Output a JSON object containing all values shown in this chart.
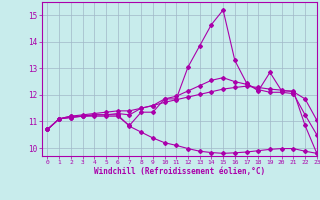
{
  "xlabel": "Windchill (Refroidissement éolien,°C)",
  "xlim": [
    -0.5,
    23
  ],
  "ylim": [
    9.7,
    15.5
  ],
  "yticks": [
    10,
    11,
    12,
    13,
    14,
    15
  ],
  "xticks": [
    0,
    1,
    2,
    3,
    4,
    5,
    6,
    7,
    8,
    9,
    10,
    11,
    12,
    13,
    14,
    15,
    16,
    17,
    18,
    19,
    20,
    21,
    22,
    23
  ],
  "background_color": "#c8ecec",
  "grid_color": "#a0b8c8",
  "line_color": "#aa00aa",
  "line1_x": [
    0,
    1,
    2,
    3,
    4,
    5,
    6,
    7,
    8,
    9,
    10,
    11,
    12,
    13,
    14,
    15,
    16,
    17,
    18,
    19,
    20,
    21,
    22,
    23
  ],
  "line1_y": [
    10.7,
    11.1,
    11.15,
    11.2,
    11.2,
    11.2,
    11.2,
    10.85,
    11.35,
    11.35,
    11.85,
    11.85,
    13.05,
    13.85,
    14.65,
    15.2,
    13.3,
    12.45,
    12.15,
    12.85,
    12.15,
    12.15,
    10.85,
    9.8
  ],
  "line2_x": [
    0,
    1,
    2,
    3,
    4,
    5,
    6,
    7,
    8,
    9,
    10,
    11,
    12,
    13,
    14,
    15,
    16,
    17,
    18,
    19,
    20,
    21,
    22,
    23
  ],
  "line2_y": [
    10.7,
    11.1,
    11.2,
    11.2,
    11.25,
    11.25,
    11.3,
    11.25,
    11.5,
    11.6,
    11.85,
    11.95,
    12.15,
    12.35,
    12.55,
    12.65,
    12.5,
    12.4,
    12.2,
    12.1,
    12.1,
    12.05,
    11.25,
    10.5
  ],
  "line3_x": [
    0,
    1,
    2,
    3,
    4,
    5,
    6,
    7,
    8,
    9,
    10,
    11,
    12,
    13,
    14,
    15,
    16,
    17,
    18,
    19,
    20,
    21,
    22,
    23
  ],
  "line3_y": [
    10.7,
    11.1,
    11.2,
    11.25,
    11.3,
    11.35,
    11.4,
    11.4,
    11.5,
    11.6,
    11.72,
    11.82,
    11.92,
    12.02,
    12.12,
    12.22,
    12.28,
    12.33,
    12.28,
    12.22,
    12.18,
    12.12,
    11.85,
    11.05
  ],
  "line4_x": [
    0,
    1,
    2,
    3,
    4,
    5,
    6,
    7,
    8,
    9,
    10,
    11,
    12,
    13,
    14,
    15,
    16,
    17,
    18,
    19,
    20,
    21,
    22,
    23
  ],
  "line4_y": [
    10.7,
    11.1,
    11.15,
    11.2,
    11.25,
    11.25,
    11.25,
    10.82,
    10.6,
    10.38,
    10.2,
    10.1,
    9.98,
    9.88,
    9.83,
    9.8,
    9.82,
    9.85,
    9.9,
    9.95,
    9.98,
    9.98,
    9.88,
    9.8
  ]
}
